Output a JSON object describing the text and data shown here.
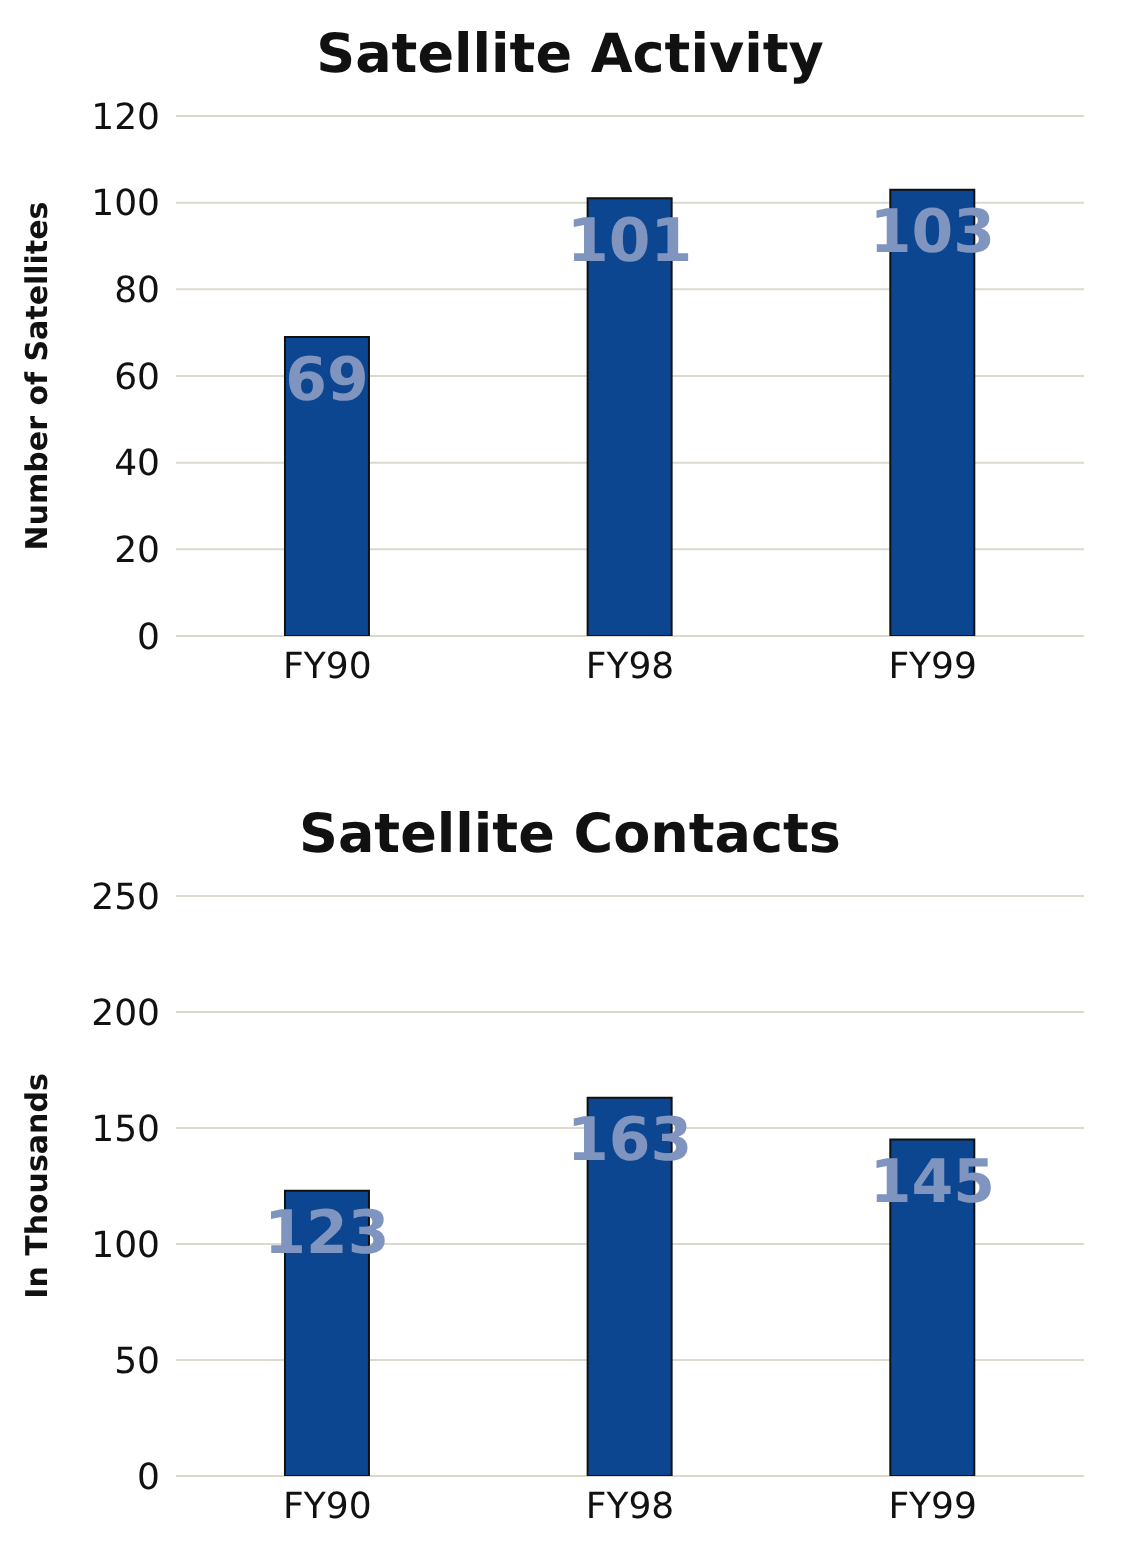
{
  "chart_data": [
    {
      "type": "bar",
      "title": "Satellite Activity",
      "ylabel": "Number of Satellites",
      "categories": [
        "FY90",
        "FY98",
        "FY99"
      ],
      "values": [
        69,
        101,
        103
      ],
      "color": "#0c4590",
      "ylim": [
        0,
        120
      ],
      "yticks": [
        0,
        20,
        40,
        60,
        80,
        100,
        120
      ],
      "grid": "y",
      "data_labels": true
    },
    {
      "type": "bar",
      "title": "Satellite Contacts",
      "ylabel": "In Thousands",
      "categories": [
        "FY90",
        "FY98",
        "FY99"
      ],
      "values": [
        123,
        163,
        145
      ],
      "color": "#0c4590",
      "ylim": [
        0,
        250
      ],
      "yticks": [
        0,
        50,
        100,
        150,
        200,
        250
      ],
      "grid": "y",
      "data_labels": true
    }
  ]
}
